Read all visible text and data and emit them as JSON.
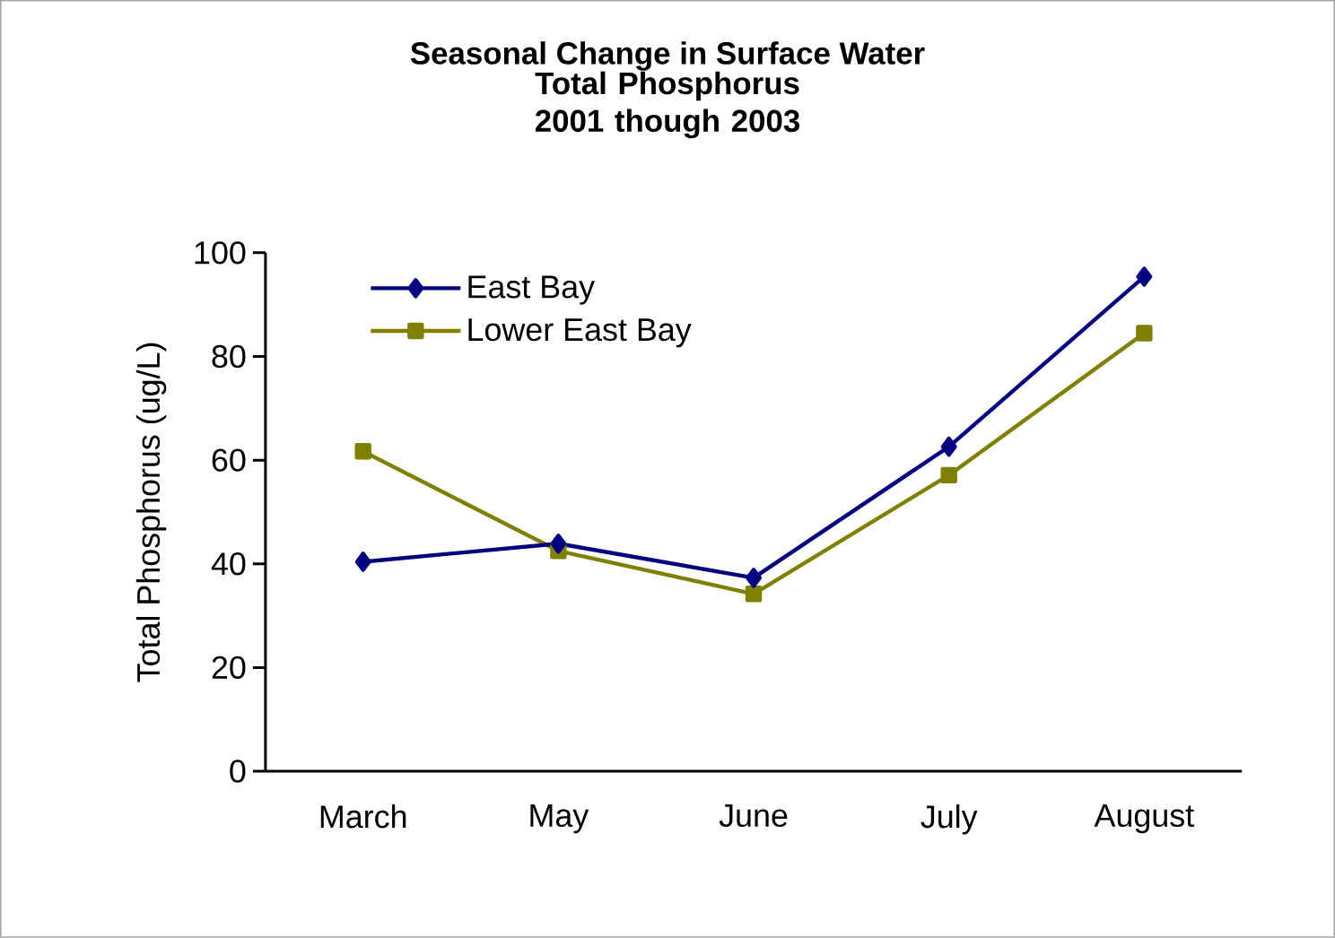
{
  "chart_data": {
    "type": "line",
    "title": "Seasonal Change in Surface Water",
    "subtitle": "Total Phosphorus 2001 though 2003",
    "ylabel": "Total Phosphorus (ug/L)",
    "categories": [
      "March",
      "May",
      "June",
      "July",
      "August"
    ],
    "series": [
      {
        "name": "East Bay",
        "color": "#000080",
        "marker": "diamond",
        "values": [
          40.4,
          43.9,
          37.3,
          62.6,
          95.4
        ]
      },
      {
        "name": "Lower East Bay",
        "color": "#808000",
        "marker": "square",
        "values": [
          61.7,
          42.5,
          34.2,
          57.1,
          84.5
        ]
      }
    ],
    "ylim": [
      0,
      100
    ],
    "yticks": [
      0,
      20,
      40,
      60,
      80,
      100
    ],
    "legend": "top left",
    "grid": false,
    "line_style": "solid"
  }
}
